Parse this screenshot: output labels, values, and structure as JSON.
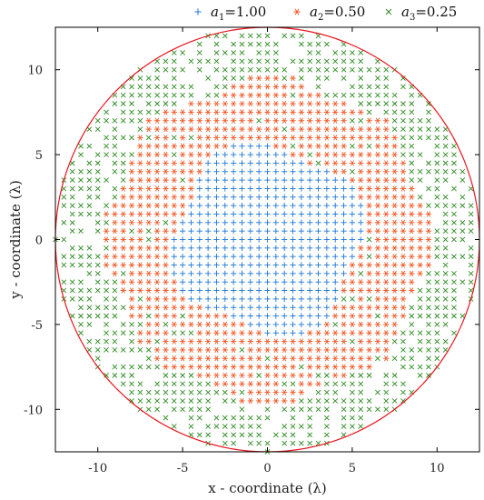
{
  "chart_data": {
    "type": "scatter",
    "xlabel": "x - coordinate (λ)",
    "ylabel": "y - coordinate (λ)",
    "xlim": [
      -12.5,
      12.5
    ],
    "ylim": [
      -12.5,
      12.5
    ],
    "x_ticks": [
      -10,
      -5,
      0,
      5,
      10
    ],
    "y_ticks": [
      -10,
      -5,
      0,
      5,
      10
    ],
    "grid": false,
    "legend_position": "top",
    "boundary_circle_radius": 12.5,
    "grid_spacing": 0.5,
    "series": [
      {
        "name": "a1=1.00",
        "name_main": "a",
        "name_sub": "1",
        "name_value": "=1.00",
        "marker": "+",
        "color": "#1f77d4",
        "region": "r <= 5.5 (irregular boundary)"
      },
      {
        "name": "a2=0.50",
        "name_main": "a",
        "name_sub": "2",
        "name_value": "=0.50",
        "marker": "*",
        "color": "#f05a28",
        "region": "5.5 < r <= 9.5 (irregular boundary)"
      },
      {
        "name": "a3=0.25",
        "name_main": "a",
        "name_sub": "3",
        "name_value": "=0.25",
        "marker": "x",
        "color": "#2e8b22",
        "region": "9.5 < r <= 12.5, partially thinned"
      }
    ],
    "boundary_color": "#e8141c"
  }
}
